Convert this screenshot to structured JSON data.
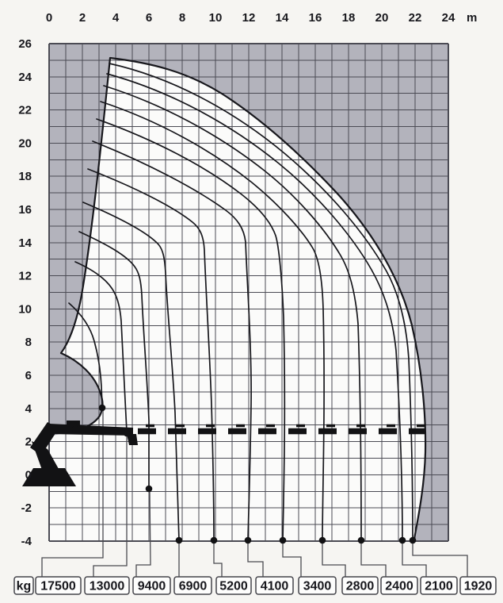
{
  "page": {
    "description": "Crane lifting capacity load diagram",
    "background": "#f6f5f2"
  },
  "axes": {
    "x": {
      "unit_label": "m",
      "tick_labels": [
        "0",
        "2",
        "4",
        "6",
        "8",
        "10",
        "12",
        "14",
        "16",
        "18",
        "20",
        "22",
        "24"
      ],
      "range_m": [
        0,
        24
      ],
      "grid_step_m": 1
    },
    "y": {
      "tick_labels": [
        "26",
        "24",
        "22",
        "20",
        "18",
        "16",
        "14",
        "12",
        "10",
        "8",
        "6",
        "4",
        "2",
        "0",
        "-2",
        "-4"
      ],
      "range_m": [
        -4,
        26
      ],
      "grid_step_m": 1
    }
  },
  "load_row": {
    "unit_label": "kg",
    "values": [
      "17500",
      "13000",
      "9400",
      "6900",
      "5200",
      "4100",
      "3400",
      "2800",
      "2400",
      "2100",
      "1920"
    ]
  },
  "colors": {
    "excluded_zone": "#b3b3bc",
    "working_zone": "#fbfbfa",
    "grid_line": "#4b4b54",
    "curve": "#17171c",
    "label_text": "#111111"
  },
  "chart_data": {
    "type": "line",
    "title": "Crane load chart: lifting capacity envelope with rated loads (kg) vs outreach (m)",
    "x_axis": {
      "label": "m",
      "range": [
        0,
        24
      ]
    },
    "y_axis": {
      "label": "m",
      "range": [
        -4,
        26
      ]
    },
    "grid": true,
    "envelope": {
      "peak_point_m": [
        3.7,
        25.1
      ],
      "max_outreach_m": 22.7,
      "outer_boundary_points_m": [
        [
          3.7,
          25.1
        ],
        [
          10.4,
          23.0
        ],
        [
          13.6,
          21.0
        ],
        [
          16.7,
          18.1
        ],
        [
          19.1,
          15.4
        ],
        [
          21.0,
          11.0
        ],
        [
          22.6,
          5.4
        ],
        [
          22.7,
          1.4
        ],
        [
          22.0,
          -3.9
        ]
      ],
      "inner_boundary_points_m": [
        [
          3.7,
          25.1
        ],
        [
          2.0,
          11.4
        ],
        [
          0.7,
          7.3
        ],
        [
          3.2,
          4.1
        ],
        [
          1.6,
          2.6
        ]
      ]
    },
    "reference_line": {
      "style": "dashed",
      "height_m": 2.6,
      "from_m": 5.3,
      "to_m": 22.6
    },
    "capacity_curves": [
      {
        "load_kg": 17500,
        "ground_outreach_m": 3.2,
        "end_point_m": [
          3.2,
          4.1
        ]
      },
      {
        "load_kg": 13000,
        "ground_outreach_m": 4.7,
        "end_point_m": [
          4.7,
          2.6
        ]
      },
      {
        "load_kg": 9400,
        "ground_outreach_m": 6.0,
        "end_point_m": [
          6.0,
          -0.9
        ]
      },
      {
        "load_kg": 6900,
        "ground_outreach_m": 7.8,
        "end_point_m": [
          7.8,
          -4
        ]
      },
      {
        "load_kg": 5200,
        "ground_outreach_m": 9.9,
        "end_point_m": [
          9.9,
          -4
        ]
      },
      {
        "load_kg": 4100,
        "ground_outreach_m": 12.0,
        "end_point_m": [
          12.0,
          -4
        ]
      },
      {
        "load_kg": 3400,
        "ground_outreach_m": 14.0,
        "end_point_m": [
          14.0,
          -4
        ]
      },
      {
        "load_kg": 2800,
        "ground_outreach_m": 16.4,
        "end_point_m": [
          16.4,
          -4
        ]
      },
      {
        "load_kg": 2400,
        "ground_outreach_m": 18.8,
        "end_point_m": [
          18.8,
          -4
        ]
      },
      {
        "load_kg": 2100,
        "ground_outreach_m": 21.2,
        "end_point_m": [
          21.2,
          -4
        ]
      },
      {
        "load_kg": 1920,
        "ground_outreach_m": 21.9,
        "end_point_m": [
          21.9,
          -4
        ]
      }
    ]
  }
}
